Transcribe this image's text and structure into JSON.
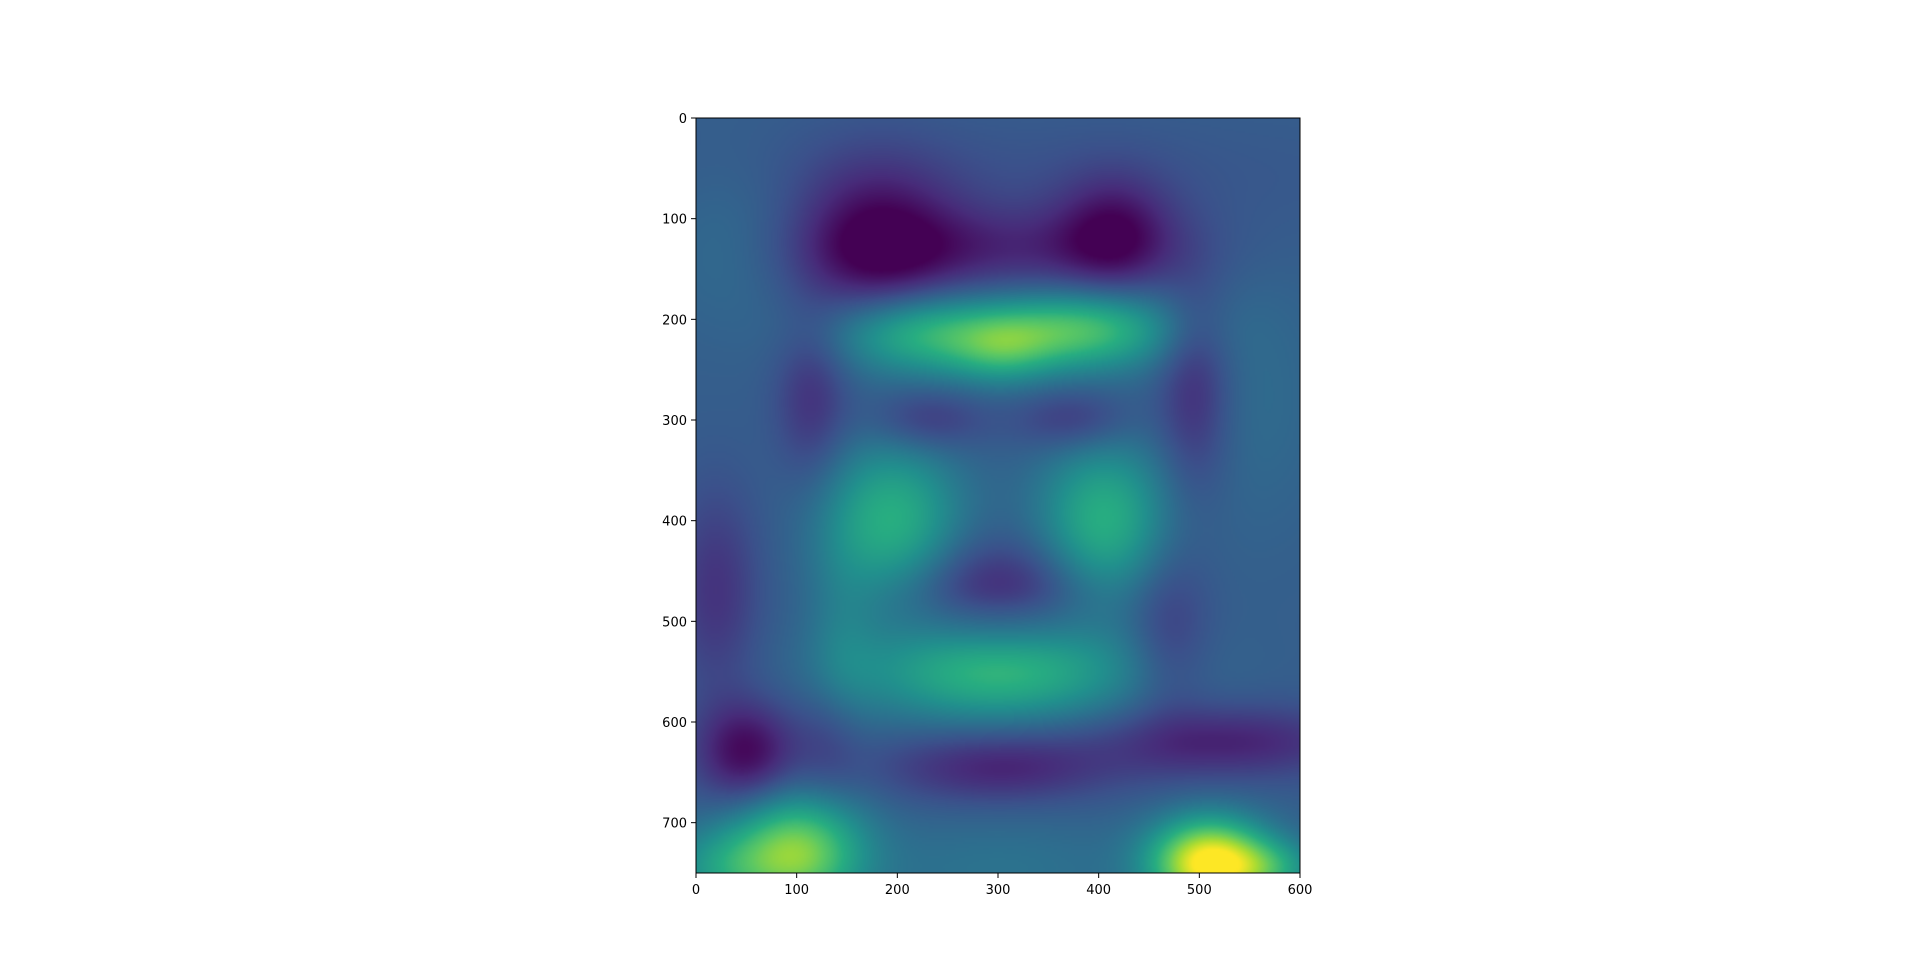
{
  "chart_data": {
    "type": "heatmap",
    "title": "",
    "xlabel": "",
    "ylabel": "",
    "colormap": "viridis",
    "xlim": [
      0,
      600
    ],
    "ylim": [
      750,
      0
    ],
    "x_ticks": [
      0,
      100,
      200,
      300,
      400,
      500,
      600
    ],
    "y_ticks": [
      0,
      100,
      200,
      300,
      400,
      500,
      600,
      700
    ],
    "x_tick_labels": [
      "0",
      "100",
      "200",
      "300",
      "400",
      "500",
      "600"
    ],
    "y_tick_labels": [
      "0",
      "100",
      "200",
      "300",
      "400",
      "500",
      "600",
      "700"
    ],
    "value_range": [
      0,
      1
    ],
    "base_level": 0.3,
    "features": [
      {
        "x": 295,
        "y": 60,
        "sx": 260,
        "sy": 40,
        "v": -0.04
      },
      {
        "x": 40,
        "y": 120,
        "sx": 55,
        "sy": 60,
        "v": 0.06
      },
      {
        "x": 180,
        "y": 125,
        "sx": 55,
        "sy": 55,
        "v": -0.28
      },
      {
        "x": 415,
        "y": 115,
        "sx": 40,
        "sy": 40,
        "v": -0.24
      },
      {
        "x": 300,
        "y": 130,
        "sx": 120,
        "sy": 30,
        "v": -0.17
      },
      {
        "x": 230,
        "y": 210,
        "sx": 65,
        "sy": 30,
        "v": 0.42
      },
      {
        "x": 380,
        "y": 210,
        "sx": 65,
        "sy": 28,
        "v": 0.42
      },
      {
        "x": 305,
        "y": 230,
        "sx": 35,
        "sy": 25,
        "v": 0.18
      },
      {
        "x": 265,
        "y": 190,
        "sx": 75,
        "sy": 25,
        "v": -0.1
      },
      {
        "x": 115,
        "y": 280,
        "sx": 25,
        "sy": 55,
        "v": -0.15
      },
      {
        "x": 495,
        "y": 270,
        "sx": 25,
        "sy": 70,
        "v": -0.17
      },
      {
        "x": 555,
        "y": 280,
        "sx": 50,
        "sy": 90,
        "v": 0.05
      },
      {
        "x": 230,
        "y": 300,
        "sx": 40,
        "sy": 22,
        "v": -0.14
      },
      {
        "x": 375,
        "y": 300,
        "sx": 40,
        "sy": 22,
        "v": -0.14
      },
      {
        "x": 195,
        "y": 400,
        "sx": 48,
        "sy": 55,
        "v": 0.33
      },
      {
        "x": 405,
        "y": 400,
        "sx": 45,
        "sy": 55,
        "v": 0.33
      },
      {
        "x": 300,
        "y": 470,
        "sx": 60,
        "sy": 35,
        "v": -0.2
      },
      {
        "x": 300,
        "y": 550,
        "sx": 95,
        "sy": 35,
        "v": 0.36
      },
      {
        "x": 300,
        "y": 490,
        "sx": 45,
        "sy": 15,
        "v": 0.05
      },
      {
        "x": 20,
        "y": 470,
        "sx": 30,
        "sy": 70,
        "v": -0.15
      },
      {
        "x": 50,
        "y": 630,
        "sx": 35,
        "sy": 35,
        "v": -0.28
      },
      {
        "x": 145,
        "y": 540,
        "sx": 25,
        "sy": 80,
        "v": 0.1
      },
      {
        "x": 135,
        "y": 620,
        "sx": 25,
        "sy": 45,
        "v": -0.12
      },
      {
        "x": 470,
        "y": 510,
        "sx": 28,
        "sy": 60,
        "v": -0.12
      },
      {
        "x": 530,
        "y": 620,
        "sx": 90,
        "sy": 25,
        "v": -0.2
      },
      {
        "x": 300,
        "y": 645,
        "sx": 80,
        "sy": 25,
        "v": -0.2
      },
      {
        "x": 100,
        "y": 730,
        "sx": 45,
        "sy": 40,
        "v": 0.5
      },
      {
        "x": 25,
        "y": 745,
        "sx": 40,
        "sy": 30,
        "v": 0.2
      },
      {
        "x": 510,
        "y": 740,
        "sx": 40,
        "sy": 30,
        "v": 0.72
      },
      {
        "x": 570,
        "y": 745,
        "sx": 35,
        "sy": 20,
        "v": 0.22
      },
      {
        "x": 300,
        "y": 745,
        "sx": 110,
        "sy": 40,
        "v": 0.08
      }
    ]
  }
}
